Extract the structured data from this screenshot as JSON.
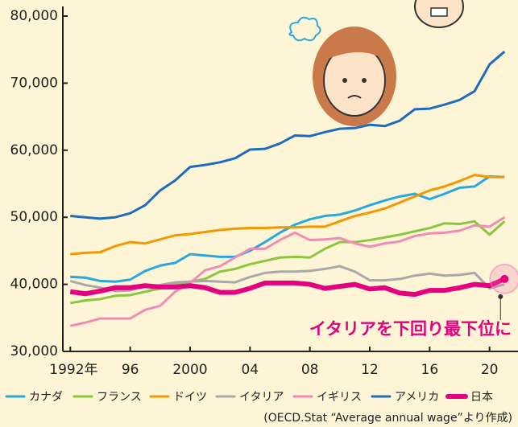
{
  "chart_data": {
    "type": "line",
    "x": [
      1992,
      1993,
      1994,
      1995,
      1996,
      1997,
      1998,
      1999,
      2000,
      2001,
      2002,
      2003,
      2004,
      2005,
      2006,
      2007,
      2008,
      2009,
      2010,
      2011,
      2012,
      2013,
      2014,
      2015,
      2016,
      2017,
      2018,
      2019,
      2020,
      2021
    ],
    "xlim": [
      1991.5,
      2021.9
    ],
    "xticks": [
      {
        "value": 1992,
        "label": "1992年"
      },
      {
        "value": 1996,
        "label": "96"
      },
      2000,
      {
        "value": 2004,
        "label": "04"
      },
      {
        "value": 2008,
        "label": "08"
      },
      {
        "value": 2012,
        "label": "12"
      },
      {
        "value": 2016,
        "label": "16"
      },
      {
        "value": 2020,
        "label": "20"
      }
    ],
    "ylim": [
      30000,
      80000
    ],
    "yticks": [
      {
        "value": 30000,
        "label": "30,000"
      },
      {
        "value": 40000,
        "label": "40,000"
      },
      {
        "value": 50000,
        "label": "50,000"
      },
      {
        "value": 60000,
        "label": "60,000"
      },
      {
        "value": 70000,
        "label": "70,000"
      },
      {
        "value": 80000,
        "label": "80,000"
      }
    ],
    "grid": false,
    "series": [
      {
        "name": "カナダ",
        "color": "#2aa7df",
        "values": [
          41100,
          41000,
          40500,
          40400,
          40700,
          42000,
          42800,
          43200,
          44500,
          44300,
          44100,
          44100,
          45000,
          46300,
          47700,
          48900,
          49700,
          50200,
          50400,
          51000,
          51800,
          52500,
          53100,
          53500,
          52700,
          53500,
          54400,
          54600,
          56100,
          56000
        ]
      },
      {
        "name": "フランス",
        "color": "#8cc63f",
        "values": [
          37200,
          37600,
          37800,
          38300,
          38400,
          38900,
          39400,
          40000,
          40400,
          40800,
          41900,
          42300,
          43000,
          43500,
          44000,
          44100,
          44000,
          45300,
          46300,
          46300,
          46600,
          47000,
          47400,
          47900,
          48400,
          49100,
          49000,
          49400,
          47400,
          49400
        ]
      },
      {
        "name": "ドイツ",
        "color": "#f39800",
        "values": [
          44500,
          44700,
          44800,
          45700,
          46300,
          46100,
          46700,
          47300,
          47500,
          47800,
          48100,
          48300,
          48400,
          48400,
          48500,
          48500,
          48600,
          48600,
          49400,
          50200,
          50700,
          51300,
          52200,
          53100,
          54000,
          54600,
          55400,
          56300,
          56000,
          56000
        ]
      },
      {
        "name": "イタリア",
        "color": "#a9a9a9",
        "values": [
          40500,
          39900,
          39500,
          39000,
          39100,
          39700,
          39900,
          40300,
          40400,
          40500,
          40400,
          40300,
          41100,
          41700,
          41900,
          41900,
          42000,
          42300,
          42700,
          41900,
          40600,
          40600,
          40800,
          41300,
          41600,
          41300,
          41400,
          41700,
          39400,
          40000
        ]
      },
      {
        "name": "イギリス",
        "color": "#f08cb6",
        "values": [
          33800,
          34300,
          34900,
          34900,
          34900,
          36200,
          36800,
          38900,
          40200,
          42100,
          42700,
          44000,
          45300,
          45300,
          46600,
          47700,
          46600,
          46700,
          46900,
          46100,
          45600,
          46100,
          46400,
          47200,
          47600,
          47700,
          48000,
          48800,
          48600,
          50000
        ]
      },
      {
        "name": "アメリカ",
        "color": "#1e6cbd",
        "values": [
          50200,
          50000,
          49800,
          50000,
          50600,
          51800,
          54000,
          55500,
          57500,
          57800,
          58200,
          58800,
          60100,
          60200,
          61000,
          62200,
          62100,
          62700,
          63200,
          63300,
          63800,
          63600,
          64400,
          66100,
          66200,
          66800,
          67500,
          68800,
          72800,
          74700
        ]
      },
      {
        "name": "日本",
        "color": "#e4007f",
        "values": [
          38900,
          38600,
          39000,
          39500,
          39500,
          39800,
          39600,
          39600,
          39800,
          39500,
          38800,
          38800,
          39400,
          40200,
          40200,
          40200,
          40000,
          39400,
          39700,
          40000,
          39300,
          39500,
          38700,
          38500,
          39100,
          39100,
          39500,
          40000,
          39800,
          40800
        ]
      }
    ],
    "annotation": "イタリアを下回り最下位に",
    "source": "(OECD.Stat “Average annual wage”より作成)"
  }
}
